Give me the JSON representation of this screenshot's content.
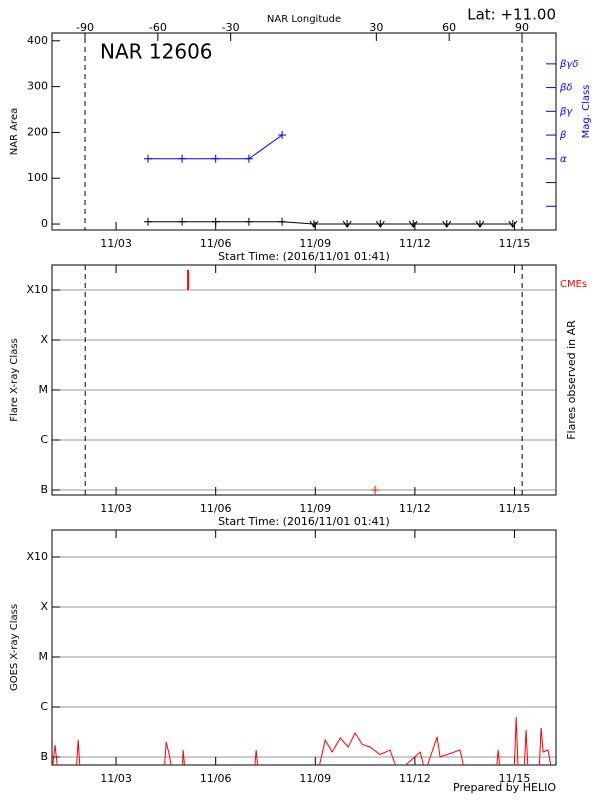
{
  "lat": "Lat: +11.00",
  "credit": "Prepared by HELIO",
  "chart_data": [
    {
      "type": "line",
      "title": "NAR 12606",
      "x2label": "NAR Longitude",
      "ylabel": "NAR Area",
      "y2label": "Mag. Class",
      "xlabel": "Start Time: (2016/11/01 01:41)",
      "y2color": "#0000ff",
      "xlim": [
        1.07,
        16.25
      ],
      "xticks": [
        {
          "value": 3,
          "label": "11/03"
        },
        {
          "value": 6,
          "label": "11/06"
        },
        {
          "value": 9,
          "label": "11/09"
        },
        {
          "value": 12,
          "label": "11/12"
        },
        {
          "value": 15,
          "label": "11/15"
        }
      ],
      "x2lim": [
        -103.6,
        104
      ],
      "x2ticks": [
        -90,
        -60,
        -30,
        30,
        60,
        90
      ],
      "limb_longitudes": [
        -90,
        90
      ],
      "ylim": [
        -13,
        417
      ],
      "yticks": [
        0,
        100,
        200,
        300,
        400
      ],
      "grid": false,
      "y2lim": [
        0,
        8.3
      ],
      "y2ticks": [
        {
          "value": 1,
          "label": null
        },
        {
          "value": 2,
          "label": null
        },
        {
          "value": 3,
          "label": "α"
        },
        {
          "value": 4,
          "label": "β"
        },
        {
          "value": 5,
          "label": "βγ"
        },
        {
          "value": 6,
          "label": "βδ"
        },
        {
          "value": 7,
          "label": "βγδ"
        }
      ],
      "series": [
        {
          "color": "#000000",
          "marker": "+",
          "zero_marker": "v",
          "x": [
            3.96,
            4.99,
            6.0,
            7.0,
            8.0,
            8.96,
            9.96,
            10.96,
            11.95,
            12.96,
            13.96,
            14.95
          ],
          "values": [
            5,
            5,
            5,
            5,
            5,
            0,
            0,
            0,
            0,
            0,
            0,
            0
          ]
        },
        {
          "color": "#0000ff",
          "marker": "+",
          "axis": "y2",
          "x": [
            3.96,
            4.99,
            6.0,
            7.0,
            8.0
          ],
          "values": [
            3,
            3,
            3,
            3,
            4
          ]
        }
      ]
    },
    {
      "type": "scatter",
      "ylabel": "Flare X-ray Class",
      "y2label": "Flares observed in AR",
      "xlabel": "Start Time: (2016/11/01 01:41)",
      "xlim": [
        1.07,
        16.25
      ],
      "xticks": [
        {
          "value": 3,
          "label": "11/03"
        },
        {
          "value": 6,
          "label": "11/06"
        },
        {
          "value": 9,
          "label": "11/09"
        },
        {
          "value": 12,
          "label": "11/12"
        },
        {
          "value": 15,
          "label": "11/15"
        }
      ],
      "limb_x": [
        2.07,
        15.23
      ],
      "ylim": [
        -7.1,
        -2.5
      ],
      "yticks": [
        {
          "value": -7,
          "label": "B"
        },
        {
          "value": -6,
          "label": "C"
        },
        {
          "value": -5,
          "label": "M"
        },
        {
          "value": -4,
          "label": "X"
        },
        {
          "value": -3,
          "label": "X10"
        }
      ],
      "grid": true,
      "series": [
        {
          "color": "#ff0000",
          "marker": "+",
          "x": [
            10.8
          ],
          "values": [
            -7.0
          ]
        },
        {
          "name": "CMEs",
          "color": "#ff0000",
          "x": [
            5.17
          ]
        }
      ]
    },
    {
      "type": "line",
      "ylabel": "GOES X-ray Class",
      "xlim": [
        1.07,
        16.25
      ],
      "xticks": [
        {
          "value": 3,
          "label": "11/03"
        },
        {
          "value": 6,
          "label": "11/06"
        },
        {
          "value": 9,
          "label": "11/09"
        },
        {
          "value": 12,
          "label": "11/12"
        },
        {
          "value": 15,
          "label": "11/15"
        }
      ],
      "ylim": [
        -7.16,
        -2.46
      ],
      "yticks": [
        {
          "value": -7,
          "label": "B"
        },
        {
          "value": -6,
          "label": "C"
        },
        {
          "value": -5,
          "label": "M"
        },
        {
          "value": -4,
          "label": "X"
        },
        {
          "value": -3,
          "label": "X10"
        }
      ],
      "grid": true,
      "series": [
        {
          "color": "#ff0000",
          "x": [
            1.07,
            1.16,
            1.25,
            1.8,
            1.86,
            1.92,
            4.45,
            4.51,
            4.6,
            4.69,
            4.99,
            5.02,
            5.08,
            7.16,
            7.22,
            7.28,
            9.08,
            9.3,
            9.51,
            9.75,
            9.99,
            10.2,
            10.42,
            10.65,
            10.95,
            11.25,
            11.49,
            12.16,
            12.31,
            12.67,
            12.76,
            13.36,
            13.51,
            14.45,
            14.51,
            14.57,
            14.99,
            15.05,
            15.11,
            15.29,
            15.35,
            15.41,
            15.74,
            15.8,
            15.86,
            16.01,
            16.13,
            16.25
          ],
          "values": [
            -7.3,
            -6.76,
            -7.3,
            -7.3,
            -6.66,
            -7.3,
            -7.3,
            -6.7,
            -6.95,
            -7.3,
            -7.3,
            -6.86,
            -7.3,
            -7.3,
            -6.86,
            -7.3,
            -7.3,
            -6.66,
            -6.9,
            -6.62,
            -6.8,
            -6.52,
            -6.75,
            -6.8,
            -6.95,
            -6.86,
            -7.3,
            -6.9,
            -7.3,
            -6.6,
            -7.0,
            -6.86,
            -7.3,
            -7.3,
            -6.86,
            -7.3,
            -7.3,
            -6.2,
            -7.3,
            -7.3,
            -6.46,
            -7.3,
            -7.3,
            -6.42,
            -6.9,
            -6.86,
            -7.3,
            -7.3
          ]
        }
      ]
    }
  ]
}
